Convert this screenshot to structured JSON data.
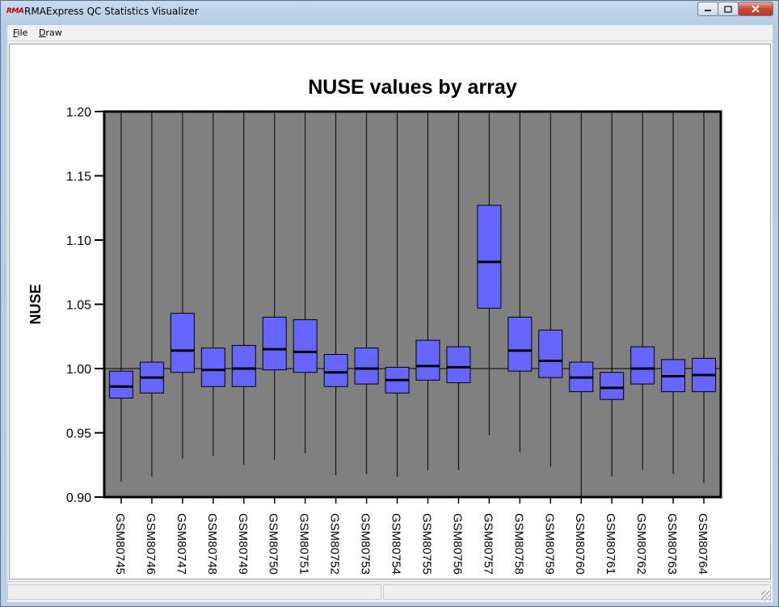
{
  "window": {
    "title": "RMAExpress QC Statistics Visualizer",
    "icon": "rma-logo-icon",
    "icon_text": "RMA"
  },
  "menu": {
    "items": [
      "File",
      "Draw"
    ]
  },
  "caption_buttons": {
    "minimize": "minimize-icon",
    "maximize": "maximize-icon",
    "close": "close-icon"
  },
  "colors": {
    "plot_bg": "#808080",
    "box_fill": "#6666ff",
    "median": "#000000",
    "title_bar": "#b9d0e8"
  },
  "chart_data": {
    "type": "box",
    "title": "NUSE values by array",
    "ylabel": "NUSE",
    "xlabel": "",
    "ylim": [
      0.9,
      1.2
    ],
    "yticks": [
      "0.90",
      "0.95",
      "1.00",
      "1.05",
      "1.10",
      "1.15",
      "1.20"
    ],
    "reference_line": 1.0,
    "grid": false,
    "categories": [
      "GSM80745",
      "GSM80746",
      "GSM80747",
      "GSM80748",
      "GSM80749",
      "GSM80750",
      "GSM80751",
      "GSM80752",
      "GSM80753",
      "GSM80754",
      "GSM80755",
      "GSM80756",
      "GSM80757",
      "GSM80758",
      "GSM80759",
      "GSM80760",
      "GSM80761",
      "GSM80762",
      "GSM80763",
      "GSM80764"
    ],
    "boxes": [
      {
        "low": 0.912,
        "q1": 0.977,
        "median": 0.986,
        "q3": 0.998,
        "high": 1.2
      },
      {
        "low": 0.916,
        "q1": 0.981,
        "median": 0.993,
        "q3": 1.005,
        "high": 1.2
      },
      {
        "low": 0.93,
        "q1": 0.997,
        "median": 1.014,
        "q3": 1.043,
        "high": 1.2
      },
      {
        "low": 0.932,
        "q1": 0.986,
        "median": 0.999,
        "q3": 1.016,
        "high": 1.2
      },
      {
        "low": 0.925,
        "q1": 0.986,
        "median": 1.0,
        "q3": 1.018,
        "high": 1.2
      },
      {
        "low": 0.929,
        "q1": 0.999,
        "median": 1.015,
        "q3": 1.04,
        "high": 1.2
      },
      {
        "low": 0.934,
        "q1": 0.997,
        "median": 1.013,
        "q3": 1.038,
        "high": 1.2
      },
      {
        "low": 0.917,
        "q1": 0.986,
        "median": 0.997,
        "q3": 1.011,
        "high": 1.2
      },
      {
        "low": 0.918,
        "q1": 0.988,
        "median": 1.0,
        "q3": 1.016,
        "high": 1.2
      },
      {
        "low": 0.916,
        "q1": 0.981,
        "median": 0.991,
        "q3": 1.001,
        "high": 1.2
      },
      {
        "low": 0.921,
        "q1": 0.991,
        "median": 1.002,
        "q3": 1.022,
        "high": 1.2
      },
      {
        "low": 0.921,
        "q1": 0.989,
        "median": 1.001,
        "q3": 1.017,
        "high": 1.2
      },
      {
        "low": 0.948,
        "q1": 1.047,
        "median": 1.083,
        "q3": 1.127,
        "high": 1.2
      },
      {
        "low": 0.935,
        "q1": 0.998,
        "median": 1.014,
        "q3": 1.04,
        "high": 1.2
      },
      {
        "low": 0.924,
        "q1": 0.993,
        "median": 1.006,
        "q3": 1.03,
        "high": 1.2
      },
      {
        "low": 0.9,
        "q1": 0.982,
        "median": 0.993,
        "q3": 1.005,
        "high": 1.2
      },
      {
        "low": 0.916,
        "q1": 0.976,
        "median": 0.985,
        "q3": 0.997,
        "high": 1.2
      },
      {
        "low": 0.921,
        "q1": 0.988,
        "median": 1.0,
        "q3": 1.017,
        "high": 1.2
      },
      {
        "low": 0.918,
        "q1": 0.982,
        "median": 0.994,
        "q3": 1.007,
        "high": 1.2
      },
      {
        "low": 0.911,
        "q1": 0.982,
        "median": 0.995,
        "q3": 1.008,
        "high": 1.2
      }
    ]
  }
}
